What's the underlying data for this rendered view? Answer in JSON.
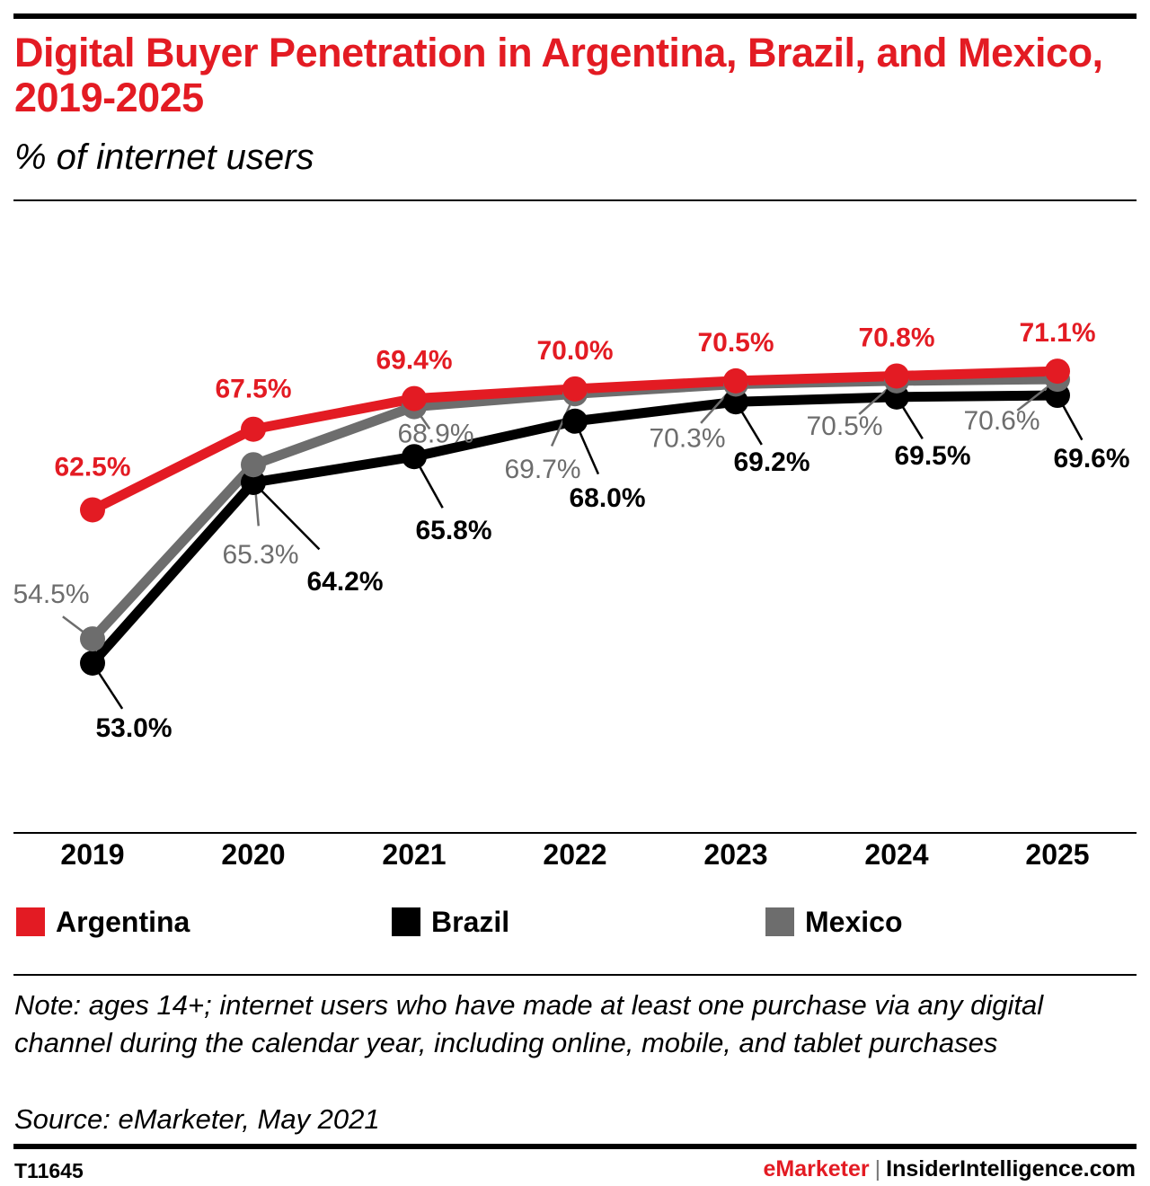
{
  "title": "Digital Buyer Penetration in Argentina, Brazil, and Mexico, 2019-2025",
  "subtitle": "% of internet users",
  "chart_data": {
    "type": "line",
    "title": "Digital Buyer Penetration in Argentina, Brazil, and Mexico, 2019-2025",
    "subtitle": "% of internet users",
    "x": [
      "2019",
      "2020",
      "2021",
      "2022",
      "2023",
      "2024",
      "2025"
    ],
    "ylim": [
      50,
      73
    ],
    "grid": false,
    "legend_position": "bottom",
    "series": [
      {
        "name": "Argentina",
        "color": "#e31b23",
        "values": [
          62.5,
          67.5,
          69.4,
          70.0,
          70.5,
          70.8,
          71.1
        ],
        "labels": [
          "62.5%",
          "67.5%",
          "69.4%",
          "70.0%",
          "70.5%",
          "70.8%",
          "71.1%"
        ]
      },
      {
        "name": "Brazil",
        "color": "#000000",
        "values": [
          53.0,
          64.2,
          65.8,
          68.0,
          69.2,
          69.5,
          69.6
        ],
        "labels": [
          "53.0%",
          "64.2%",
          "65.8%",
          "68.0%",
          "69.2%",
          "69.5%",
          "69.6%"
        ]
      },
      {
        "name": "Mexico",
        "color": "#6d6d6d",
        "values": [
          54.5,
          65.3,
          68.9,
          69.7,
          70.3,
          70.5,
          70.6
        ],
        "labels": [
          "54.5%",
          "65.3%",
          "68.9%",
          "69.7%",
          "70.3%",
          "70.5%",
          "70.6%"
        ]
      }
    ]
  },
  "legend": [
    "Argentina",
    "Brazil",
    "Mexico"
  ],
  "note": "Note: ages 14+; internet users who have made at least one purchase via any digital channel during the calendar year, including online, mobile, and tablet purchases",
  "source": "Source: eMarketer, May 2021",
  "chart_id": "T11645",
  "credit": {
    "brand": "eMarketer",
    "separator": "|",
    "site": "InsiderIntelligence.com"
  }
}
